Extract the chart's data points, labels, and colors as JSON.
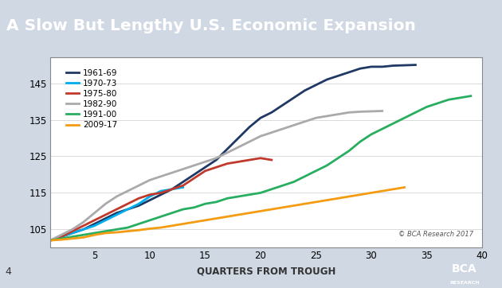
{
  "title": "A Slow But Lengthy U.S. Economic Expansion",
  "title_bg_color": "#1f3864",
  "title_text_color": "#ffffff",
  "xlabel": "QUARTERS FROM TROUGH",
  "ylabel": "",
  "xlim": [
    1,
    40
  ],
  "ylim": [
    100,
    152
  ],
  "yticks": [
    105,
    115,
    125,
    135,
    145
  ],
  "xticks": [
    5,
    10,
    15,
    20,
    25,
    30,
    35,
    40
  ],
  "background_color": "#ffffff",
  "plot_bg_color": "#ffffff",
  "copyright_text": "© BCA Research 2017",
  "page_number": "4",
  "series": [
    {
      "label": "1961-69",
      "color": "#1f3864",
      "linewidth": 2.0,
      "x": [
        1,
        2,
        3,
        4,
        5,
        6,
        7,
        8,
        9,
        10,
        11,
        12,
        13,
        14,
        15,
        16,
        17,
        18,
        19,
        20,
        21,
        22,
        23,
        24,
        25,
        26,
        27,
        28,
        29,
        30,
        31,
        32,
        33,
        34
      ],
      "y": [
        102,
        103,
        104,
        105,
        106.5,
        108,
        109.5,
        110.5,
        111.5,
        113,
        114.5,
        116,
        118,
        120,
        122,
        124,
        127,
        130,
        133,
        135.5,
        137,
        139,
        141,
        143,
        144.5,
        146,
        147,
        148,
        149,
        149.5,
        149.5,
        149.8,
        149.9,
        150
      ]
    },
    {
      "label": "1970-73",
      "color": "#00aeef",
      "linewidth": 2.0,
      "x": [
        1,
        2,
        3,
        4,
        5,
        6,
        7,
        8,
        9,
        10,
        11,
        12,
        13
      ],
      "y": [
        102,
        103,
        104,
        105,
        106,
        107.5,
        109,
        110.5,
        112,
        114,
        115.5,
        116,
        116.5
      ]
    },
    {
      "label": "1975-80",
      "color": "#c0392b",
      "linewidth": 2.0,
      "x": [
        1,
        2,
        3,
        4,
        5,
        6,
        7,
        8,
        9,
        10,
        11,
        12,
        13,
        14,
        15,
        16,
        17,
        18,
        19,
        20,
        21
      ],
      "y": [
        102,
        103,
        104.5,
        106,
        107.5,
        109,
        110.5,
        112,
        113.5,
        114.5,
        115,
        116,
        117,
        119,
        121,
        122,
        123,
        123.5,
        124,
        124.5,
        124
      ]
    },
    {
      "label": "1982-90",
      "color": "#aaaaaa",
      "linewidth": 2.0,
      "x": [
        1,
        2,
        3,
        4,
        5,
        6,
        7,
        8,
        9,
        10,
        11,
        12,
        13,
        14,
        15,
        16,
        17,
        18,
        19,
        20,
        21,
        22,
        23,
        24,
        25,
        26,
        27,
        28,
        29,
        30,
        31
      ],
      "y": [
        102,
        103.5,
        105,
        107,
        109.5,
        112,
        114,
        115.5,
        117,
        118.5,
        119.5,
        120.5,
        121.5,
        122.5,
        123.5,
        124.5,
        126,
        127.5,
        129,
        130.5,
        131.5,
        132.5,
        133.5,
        134.5,
        135.5,
        136,
        136.5,
        137,
        137.2,
        137.3,
        137.4
      ]
    },
    {
      "label": "1991-00",
      "color": "#27ae60",
      "linewidth": 2.0,
      "x": [
        1,
        2,
        3,
        4,
        5,
        6,
        7,
        8,
        9,
        10,
        11,
        12,
        13,
        14,
        15,
        16,
        17,
        18,
        19,
        20,
        21,
        22,
        23,
        24,
        25,
        26,
        27,
        28,
        29,
        30,
        31,
        32,
        33,
        34,
        35,
        36,
        37,
        38,
        39
      ],
      "y": [
        102,
        102.5,
        103,
        103.5,
        104,
        104.5,
        105,
        105.5,
        106.5,
        107.5,
        108.5,
        109.5,
        110.5,
        111,
        112,
        112.5,
        113.5,
        114,
        114.5,
        115,
        116,
        117,
        118,
        119.5,
        121,
        122.5,
        124.5,
        126.5,
        129,
        131,
        132.5,
        134,
        135.5,
        137,
        138.5,
        139.5,
        140.5,
        141,
        141.5
      ]
    },
    {
      "label": "2009-17",
      "color": "#f39c12",
      "linewidth": 2.0,
      "x": [
        1,
        2,
        3,
        4,
        5,
        6,
        7,
        8,
        9,
        10,
        11,
        12,
        13,
        14,
        15,
        16,
        17,
        18,
        19,
        20,
        21,
        22,
        23,
        24,
        25,
        26,
        27,
        28,
        29,
        30,
        31,
        32,
        33
      ],
      "y": [
        102,
        102.2,
        102.5,
        102.8,
        103.5,
        104,
        104.2,
        104.5,
        104.8,
        105.2,
        105.5,
        106,
        106.5,
        107,
        107.5,
        108,
        108.5,
        109,
        109.5,
        110,
        110.5,
        111,
        111.5,
        112,
        112.5,
        113,
        113.5,
        114,
        114.5,
        115,
        115.5,
        116,
        116.5
      ]
    }
  ]
}
